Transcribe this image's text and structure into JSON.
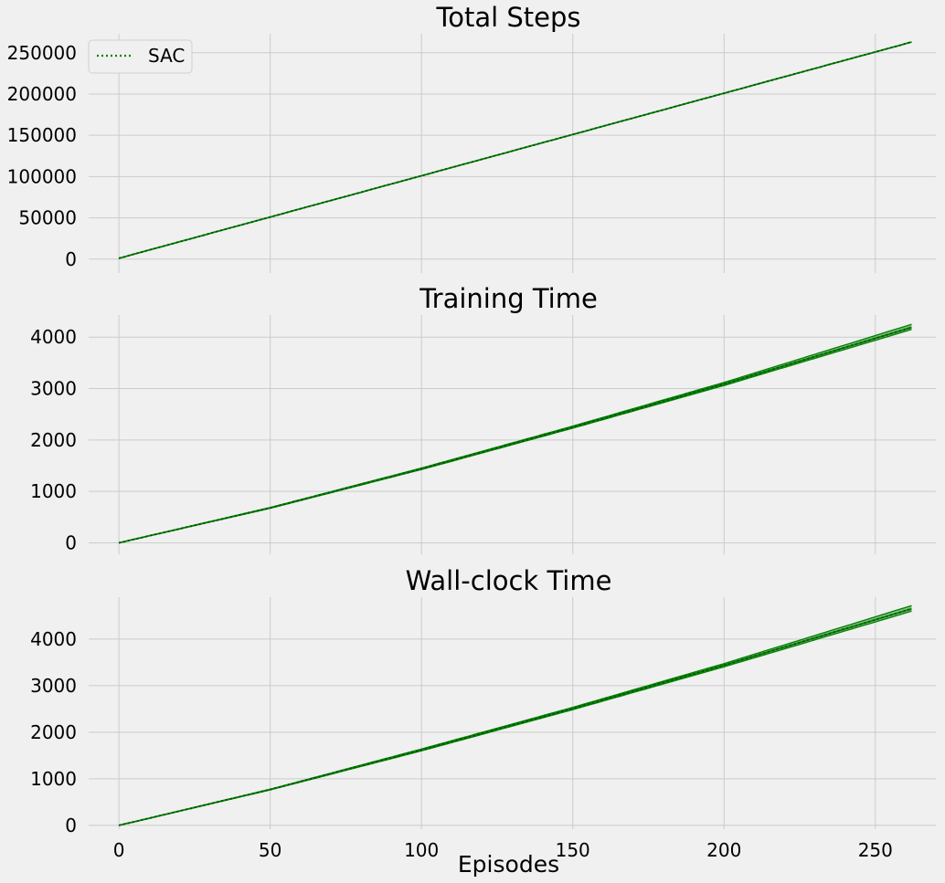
{
  "chart_data": [
    {
      "type": "line",
      "title": "Total Steps",
      "xlabel": "",
      "ylabel": "",
      "xlim": [
        -10,
        270
      ],
      "ylim": [
        -8000,
        273000
      ],
      "xticks": [
        0,
        50,
        100,
        150,
        200,
        250
      ],
      "yticks": [
        0,
        50000,
        100000,
        150000,
        200000,
        250000
      ],
      "show_x_tick_labels": false,
      "grid": true,
      "legend": "top-left",
      "series": [
        {
          "name": "SAC",
          "color": "#008000",
          "style": "dotted",
          "x": [
            0,
            50,
            100,
            150,
            200,
            262
          ],
          "y": [
            1000,
            51000,
            101000,
            151000,
            201000,
            263000
          ],
          "band": null
        }
      ]
    },
    {
      "type": "line",
      "title": "Training Time",
      "xlabel": "",
      "ylabel": "",
      "xlim": [
        -10,
        270
      ],
      "ylim": [
        -80,
        4430
      ],
      "xticks": [
        0,
        50,
        100,
        150,
        200,
        250
      ],
      "yticks": [
        0,
        1000,
        2000,
        3000,
        4000
      ],
      "show_x_tick_labels": false,
      "grid": true,
      "legend": "none",
      "series": [
        {
          "name": "SAC",
          "color": "#008000",
          "style": "dotted",
          "x": [
            0,
            50,
            100,
            150,
            200,
            262
          ],
          "y": [
            0,
            680,
            1440,
            2250,
            3090,
            4190
          ],
          "band": {
            "lower": [
              0,
              672,
              1425,
              2230,
              3060,
              4150
            ],
            "upper": [
              0,
              688,
              1455,
              2270,
              3120,
              4250
            ]
          }
        }
      ]
    },
    {
      "type": "line",
      "title": "Wall-clock Time",
      "xlabel": "Episodes",
      "ylabel": "",
      "xlim": [
        -10,
        270
      ],
      "ylim": [
        -80,
        4900
      ],
      "xticks": [
        0,
        50,
        100,
        150,
        200,
        250
      ],
      "yticks": [
        0,
        1000,
        2000,
        3000,
        4000
      ],
      "show_x_tick_labels": true,
      "grid": true,
      "legend": "none",
      "series": [
        {
          "name": "SAC",
          "color": "#008000",
          "style": "dotted",
          "x": [
            0,
            50,
            100,
            150,
            200,
            262
          ],
          "y": [
            0,
            770,
            1620,
            2510,
            3440,
            4650
          ],
          "band": {
            "lower": [
              0,
              762,
              1600,
              2485,
              3405,
              4600
            ],
            "upper": [
              0,
              778,
              1640,
              2535,
              3475,
              4720
            ]
          }
        }
      ]
    }
  ]
}
